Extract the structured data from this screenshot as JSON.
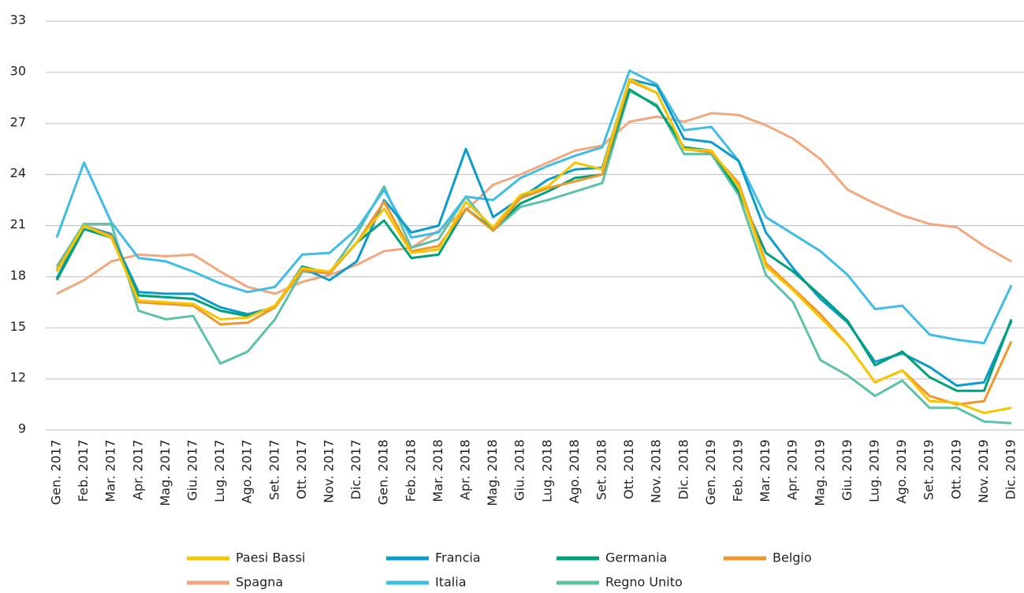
{
  "chart_data": {
    "type": "line",
    "categories": [
      "Gen. 2017",
      "Feb. 2017",
      "Mar. 2017",
      "Apr. 2017",
      "Mag. 2017",
      "Giu. 2017",
      "Lug. 2017",
      "Ago. 2017",
      "Set. 2017",
      "Ott. 2017",
      "Nov. 2017",
      "Dic. 2017",
      "Gen. 2018",
      "Feb. 2018",
      "Mar. 2018",
      "Apr. 2018",
      "Mag. 2018",
      "Giu. 2018",
      "Lug. 2018",
      "Ago. 2018",
      "Set. 2018",
      "Ott. 2018",
      "Nov. 2018",
      "Dic. 2018",
      "Gen. 2019",
      "Feb. 2019",
      "Mar. 2019",
      "Apr. 2019",
      "Mag. 2019",
      "Giu. 2019",
      "Lug. 2019",
      "Ago. 2019",
      "Set. 2019",
      "Ott. 2019",
      "Nov. 2019",
      "Dic. 2019"
    ],
    "ylim": [
      9,
      33
    ],
    "yticks": [
      9,
      12,
      15,
      18,
      21,
      24,
      27,
      30,
      33
    ],
    "grid": true,
    "series": [
      {
        "name": "Spagna",
        "color": "#f2a77e",
        "values": [
          17.0,
          17.8,
          18.9,
          19.3,
          19.2,
          19.3,
          18.3,
          17.4,
          17.0,
          17.7,
          18.1,
          18.7,
          19.5,
          19.7,
          20.7,
          21.9,
          23.4,
          24.0,
          24.7,
          25.4,
          25.7,
          27.1,
          27.4,
          27.1,
          27.6,
          27.5,
          26.9,
          26.1,
          24.9,
          23.1,
          22.3,
          21.6,
          21.1,
          20.9,
          19.8,
          18.9
        ]
      },
      {
        "name": "Regno Unito",
        "color": "#5cc2a7",
        "values": [
          18.6,
          21.1,
          21.1,
          16.0,
          15.5,
          15.7,
          12.9,
          13.6,
          15.5,
          18.3,
          18.2,
          20.5,
          23.3,
          19.7,
          20.2,
          22.7,
          20.7,
          22.1,
          22.5,
          23.0,
          23.5,
          28.9,
          28.1,
          25.2,
          25.2,
          22.8,
          18.1,
          16.5,
          13.1,
          12.2,
          11.0,
          11.9,
          10.3,
          10.3,
          9.5,
          9.4
        ]
      },
      {
        "name": "Italia",
        "color": "#40bde6",
        "values": [
          20.3,
          24.7,
          21.2,
          19.1,
          18.9,
          18.3,
          17.6,
          17.1,
          17.4,
          19.3,
          19.4,
          20.8,
          23.1,
          20.3,
          20.6,
          22.7,
          22.5,
          23.8,
          24.5,
          25.1,
          25.6,
          30.1,
          29.3,
          26.6,
          26.8,
          24.8,
          21.5,
          20.5,
          19.5,
          18.1,
          16.1,
          16.3,
          14.6,
          14.3,
          14.1,
          17.5
        ]
      },
      {
        "name": "Francia",
        "color": "#0a9ccd",
        "values": [
          17.9,
          21.0,
          20.5,
          17.1,
          17.0,
          17.0,
          16.2,
          15.8,
          16.2,
          18.5,
          17.8,
          18.9,
          22.5,
          20.6,
          21.0,
          25.5,
          21.5,
          22.6,
          23.7,
          24.3,
          24.4,
          29.6,
          29.2,
          26.1,
          25.9,
          24.8,
          20.6,
          18.5,
          16.7,
          15.3,
          13.0,
          13.5,
          12.7,
          11.6,
          11.8,
          15.4
        ]
      },
      {
        "name": "Germania",
        "color": "#00a07b",
        "values": [
          17.8,
          20.8,
          20.3,
          16.9,
          16.8,
          16.7,
          16.0,
          15.7,
          16.2,
          18.6,
          18.2,
          20.0,
          21.3,
          19.1,
          19.3,
          22.0,
          20.8,
          22.3,
          23.0,
          23.8,
          24.0,
          29.0,
          28.0,
          25.6,
          25.4,
          23.0,
          19.4,
          18.3,
          16.9,
          15.4,
          12.8,
          13.6,
          12.1,
          11.3,
          11.3,
          15.5
        ]
      },
      {
        "name": "Belgio",
        "color": "#f2962c",
        "values": [
          18.4,
          21.0,
          20.4,
          16.5,
          16.4,
          16.3,
          15.2,
          15.3,
          16.2,
          18.4,
          18.2,
          20.0,
          22.4,
          19.5,
          19.8,
          22.0,
          20.7,
          22.6,
          23.2,
          23.6,
          24.0,
          29.5,
          28.8,
          25.5,
          25.3,
          23.5,
          18.8,
          17.3,
          15.8,
          14.0,
          11.8,
          12.5,
          11.0,
          10.5,
          10.7,
          14.2
        ]
      },
      {
        "name": "Paesi Bassi",
        "color": "#f7c500",
        "values": [
          18.3,
          21.0,
          20.3,
          16.6,
          16.5,
          16.4,
          15.5,
          15.6,
          16.3,
          18.5,
          18.3,
          20.0,
          22.0,
          19.4,
          19.6,
          22.4,
          20.9,
          22.8,
          23.3,
          24.7,
          24.3,
          29.6,
          28.8,
          25.5,
          25.4,
          23.3,
          18.6,
          17.2,
          15.6,
          14.0,
          11.8,
          12.5,
          10.7,
          10.6,
          10.0,
          10.3
        ]
      }
    ],
    "legend_order": [
      "Paesi Bassi",
      "Francia",
      "Germania",
      "Belgio",
      "Spagna",
      "Italia",
      "Regno Unito"
    ]
  }
}
